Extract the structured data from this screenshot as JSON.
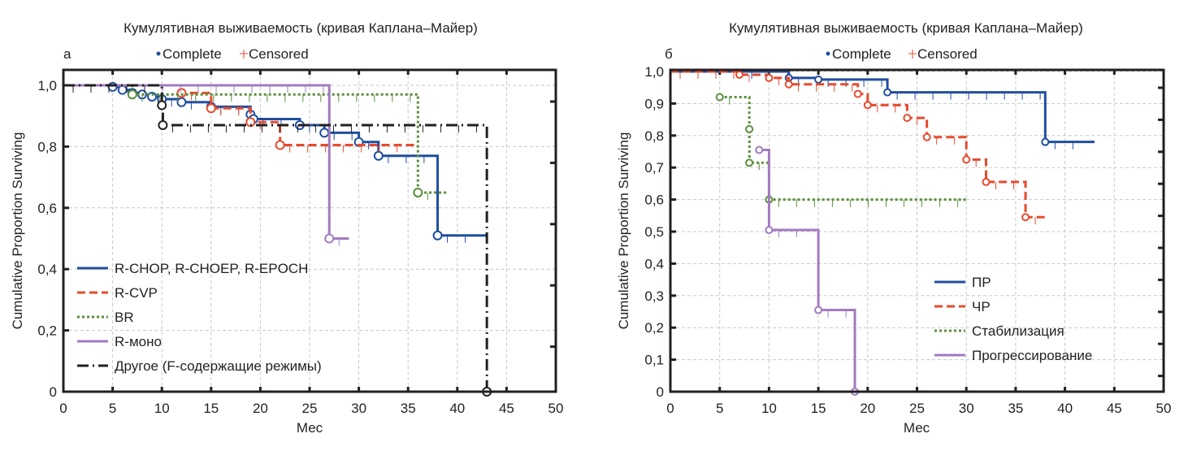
{
  "chart_data": [
    {
      "type": "line",
      "panel_label": "а",
      "title": "Кумулятивная выживаемость (кривая Каплана–Майер)",
      "subtitle_legend": {
        "complete": "Complete",
        "censored": "Censored"
      },
      "xlabel": "Мес",
      "ylabel": "Cumulative Proportion Surviving",
      "xlim": [
        0,
        50
      ],
      "ylim": [
        0,
        1.0
      ],
      "xticks": [
        0,
        5,
        10,
        15,
        20,
        25,
        30,
        35,
        40,
        45,
        50
      ],
      "yticks": [
        0,
        0.2,
        0.4,
        0.6,
        0.8,
        1.0
      ],
      "ytick_labels": [
        "0",
        "0,2",
        "0,4",
        "0,6",
        "0,8",
        "1,0"
      ],
      "grid": true,
      "legend_placement": "bottom-left",
      "series": [
        {
          "name": "R-CHOP, R-CHOEP, R-EPOCH",
          "color": "#1f4e9f",
          "dash": "solid",
          "steps": [
            [
              0,
              1.0
            ],
            [
              5,
              0.995
            ],
            [
              6,
              0.985
            ],
            [
              7,
              0.975
            ],
            [
              8,
              0.97
            ],
            [
              9,
              0.963
            ],
            [
              10,
              0.955
            ],
            [
              12,
              0.945
            ],
            [
              15,
              0.93
            ],
            [
              19,
              0.905
            ],
            [
              19.3,
              0.89
            ],
            [
              24,
              0.87
            ],
            [
              26.5,
              0.845
            ],
            [
              30,
              0.815
            ],
            [
              32,
              0.77
            ],
            [
              38,
              0.51
            ],
            [
              43,
              0.51
            ]
          ],
          "complete": [
            [
              5,
              0.995
            ],
            [
              6,
              0.985
            ],
            [
              7,
              0.975
            ],
            [
              8,
              0.97
            ],
            [
              9,
              0.963
            ],
            [
              10,
              0.955
            ],
            [
              12,
              0.945
            ],
            [
              15,
              0.93
            ],
            [
              19,
              0.905
            ],
            [
              19.3,
              0.89
            ],
            [
              24,
              0.87
            ],
            [
              26.5,
              0.845
            ],
            [
              30,
              0.815
            ],
            [
              32,
              0.77
            ],
            [
              38,
              0.51
            ]
          ]
        },
        {
          "name": "R-CVP",
          "color": "#e64b2e",
          "dash": "dashed",
          "steps": [
            [
              0,
              1.0
            ],
            [
              12,
              0.975
            ],
            [
              15,
              0.925
            ],
            [
              19,
              0.88
            ],
            [
              22,
              0.805
            ],
            [
              36,
              0.805
            ]
          ],
          "complete": [
            [
              12,
              0.975
            ],
            [
              15,
              0.925
            ],
            [
              19,
              0.88
            ],
            [
              22,
              0.805
            ]
          ]
        },
        {
          "name": "BR",
          "color": "#5a8f3c",
          "dash": "dotted",
          "steps": [
            [
              0,
              1.0
            ],
            [
              7,
              0.97
            ],
            [
              36,
              0.65
            ],
            [
              39,
              0.65
            ]
          ],
          "complete": [
            [
              7,
              0.97
            ],
            [
              36,
              0.65
            ]
          ]
        },
        {
          "name": "R-моно",
          "color": "#a27bbf",
          "dash": "solid",
          "steps": [
            [
              0,
              1.0
            ],
            [
              27,
              0.5
            ],
            [
              29,
              0.5
            ]
          ],
          "complete": [
            [
              27,
              0.5
            ]
          ]
        },
        {
          "name": "Другое (F-содержащие режимы)",
          "color": "#231f20",
          "dash": "dashdot",
          "steps": [
            [
              0,
              1.0
            ],
            [
              10,
              0.935
            ],
            [
              10.1,
              0.87
            ],
            [
              43,
              0.0
            ]
          ],
          "complete": [
            [
              10,
              0.935
            ],
            [
              10.1,
              0.87
            ],
            [
              43,
              0.0
            ]
          ]
        }
      ]
    },
    {
      "type": "line",
      "panel_label": "б",
      "title": "Кумулятивная выживаемость (кривая Каплана–Майер)",
      "subtitle_legend": {
        "complete": "Complete",
        "censored": "Censored"
      },
      "xlabel": "Мес",
      "ylabel": "Cumulative Proportion Surviving",
      "xlim": [
        0,
        50
      ],
      "ylim": [
        0,
        1.0
      ],
      "xticks": [
        0,
        5,
        10,
        15,
        20,
        25,
        30,
        35,
        40,
        45,
        50
      ],
      "yticks": [
        0,
        0.1,
        0.2,
        0.3,
        0.4,
        0.5,
        0.6,
        0.7,
        0.8,
        0.9,
        1.0
      ],
      "ytick_labels": [
        "0",
        "0,1",
        "0,2",
        "0,3",
        "0,4",
        "0,5",
        "0,6",
        "0,7",
        "0,8",
        "0,9",
        "1,0"
      ],
      "grid": true,
      "legend_placement": "bottom-right",
      "series": [
        {
          "name": "ПР",
          "color": "#1f4e9f",
          "dash": "solid",
          "steps": [
            [
              0,
              1.0
            ],
            [
              12,
              0.98
            ],
            [
              15,
              0.975
            ],
            [
              22,
              0.935
            ],
            [
              38,
              0.78
            ],
            [
              43,
              0.78
            ]
          ],
          "complete": [
            [
              12,
              0.98
            ],
            [
              15,
              0.975
            ],
            [
              22,
              0.935
            ],
            [
              38,
              0.78
            ]
          ]
        },
        {
          "name": "ЧР",
          "color": "#e64b2e",
          "dash": "dashed",
          "steps": [
            [
              0,
              1.0
            ],
            [
              7,
              0.99
            ],
            [
              10,
              0.98
            ],
            [
              12,
              0.96
            ],
            [
              19,
              0.93
            ],
            [
              20,
              0.895
            ],
            [
              24,
              0.855
            ],
            [
              26,
              0.795
            ],
            [
              30,
              0.725
            ],
            [
              32,
              0.655
            ],
            [
              36,
              0.545
            ],
            [
              38,
              0.545
            ]
          ],
          "complete": [
            [
              7,
              0.99
            ],
            [
              10,
              0.98
            ],
            [
              12,
              0.96
            ],
            [
              19,
              0.93
            ],
            [
              20,
              0.895
            ],
            [
              24,
              0.855
            ],
            [
              26,
              0.795
            ],
            [
              30,
              0.725
            ],
            [
              32,
              0.655
            ],
            [
              36,
              0.545
            ]
          ]
        },
        {
          "name": "Стабилизация",
          "color": "#5a8f3c",
          "dash": "dotted",
          "steps": [
            [
              5,
              0.92
            ],
            [
              8,
              0.82
            ],
            [
              8.01,
              0.715
            ],
            [
              10,
              0.6
            ],
            [
              30,
              0.6
            ]
          ],
          "complete": [
            [
              5,
              0.92
            ],
            [
              8,
              0.82
            ],
            [
              8,
              0.715
            ],
            [
              10,
              0.6
            ]
          ]
        },
        {
          "name": "Прогрессирование",
          "color": "#a27bbf",
          "dash": "solid",
          "steps": [
            [
              9,
              0.755
            ],
            [
              10,
              0.505
            ],
            [
              15,
              0.255
            ],
            [
              18.7,
              0.0
            ]
          ],
          "complete": [
            [
              9,
              0.755
            ],
            [
              10,
              0.505
            ],
            [
              15,
              0.255
            ],
            [
              18.7,
              0.0
            ]
          ]
        }
      ]
    }
  ]
}
